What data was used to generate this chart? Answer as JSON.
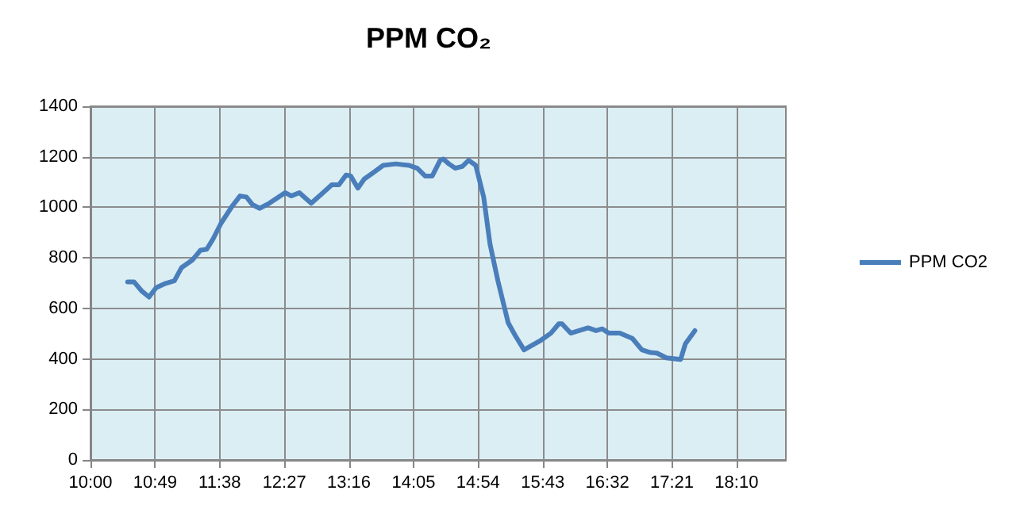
{
  "chart_data": {
    "type": "line",
    "title": "PPM CO₂",
    "x": [
      10.47,
      10.55,
      10.65,
      10.74,
      10.83,
      10.95,
      11.06,
      11.15,
      11.29,
      11.39,
      11.47,
      11.55,
      11.65,
      11.79,
      11.89,
      11.97,
      12.05,
      12.14,
      12.26,
      12.46,
      12.54,
      12.64,
      12.79,
      12.94,
      13.05,
      13.14,
      13.23,
      13.29,
      13.38,
      13.46,
      13.56,
      13.7,
      13.86,
      14.03,
      14.13,
      14.23,
      14.32,
      14.42,
      14.46,
      14.53,
      14.61,
      14.7,
      14.78,
      14.87,
      14.97,
      15.05,
      15.15,
      15.28,
      15.37,
      15.48,
      15.68,
      15.82,
      15.92,
      15.96,
      16.07,
      16.29,
      16.39,
      16.47,
      16.55,
      16.69,
      16.85,
      16.97,
      17.08,
      17.16,
      17.28,
      17.46,
      17.52,
      17.64
    ],
    "series": [
      {
        "name": "PPM CO2",
        "color": "#4a7ebb",
        "values": [
          705,
          705,
          668,
          645,
          682,
          699,
          709,
          761,
          792,
          830,
          834,
          875,
          937,
          1004,
          1045,
          1041,
          1010,
          996,
          1016,
          1058,
          1045,
          1058,
          1016,
          1058,
          1089,
          1089,
          1128,
          1124,
          1076,
          1112,
          1134,
          1166,
          1172,
          1166,
          1155,
          1124,
          1124,
          1186,
          1191,
          1172,
          1155,
          1162,
          1186,
          1166,
          1041,
          855,
          709,
          543,
          492,
          436,
          471,
          502,
          539,
          539,
          502,
          523,
          512,
          519,
          502,
          502,
          481,
          436,
          425,
          423,
          404,
          398,
          460,
          512
        ]
      }
    ],
    "xlim": [
      10,
      18.79
    ],
    "xticks": [
      {
        "value": 10,
        "label": "10:00"
      },
      {
        "value": 10.8167,
        "label": "10:49"
      },
      {
        "value": 11.6333,
        "label": "11:38"
      },
      {
        "value": 12.45,
        "label": "12:27"
      },
      {
        "value": 13.2667,
        "label": "13:16"
      },
      {
        "value": 14.0833,
        "label": "14:05"
      },
      {
        "value": 14.9,
        "label": "14:54"
      },
      {
        "value": 15.7167,
        "label": "15:43"
      },
      {
        "value": 16.5333,
        "label": "16:32"
      },
      {
        "value": 17.35,
        "label": "17:21"
      },
      {
        "value": 18.1667,
        "label": "18:10"
      }
    ],
    "ylim": [
      0,
      1400
    ],
    "yticks": [
      0,
      200,
      400,
      600,
      800,
      1000,
      1200,
      1400
    ],
    "grid": true,
    "legend": "right",
    "marker": "none",
    "line_style": "solid"
  }
}
